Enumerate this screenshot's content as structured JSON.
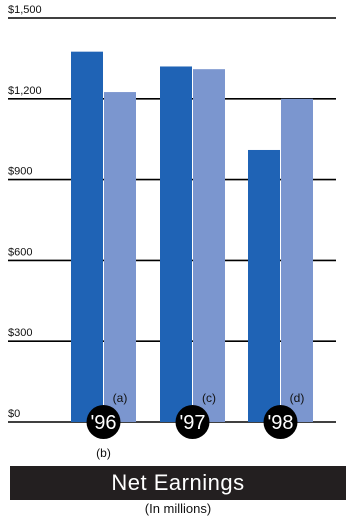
{
  "chart_data": {
    "type": "bar",
    "title": "Net Earnings",
    "subtitle": "(In millions)",
    "categories": [
      "'96",
      "'97",
      "'98"
    ],
    "category_notes": [
      "(b)",
      "",
      ""
    ],
    "bar_notes": [
      "(a)",
      "(c)",
      "(d)"
    ],
    "series": [
      {
        "values": [
          1375,
          1320,
          1010
        ],
        "color": "#1f63b5"
      },
      {
        "values": [
          1225,
          1310,
          1200
        ],
        "color": "#7b96cf"
      }
    ],
    "y_ticks": [
      {
        "value": 0,
        "label": "$0"
      },
      {
        "value": 300,
        "label": "$300"
      },
      {
        "value": 600,
        "label": "$600"
      },
      {
        "value": 900,
        "label": "$900"
      },
      {
        "value": 1200,
        "label": "$1,200"
      },
      {
        "value": 1500,
        "label": "$1,500"
      }
    ],
    "ylim": [
      0,
      1500
    ],
    "grid": true,
    "colors": {
      "badge": "#000000",
      "badge_text": "#ffffff",
      "gridline": "#000000",
      "title_bar": "#231f20"
    }
  }
}
